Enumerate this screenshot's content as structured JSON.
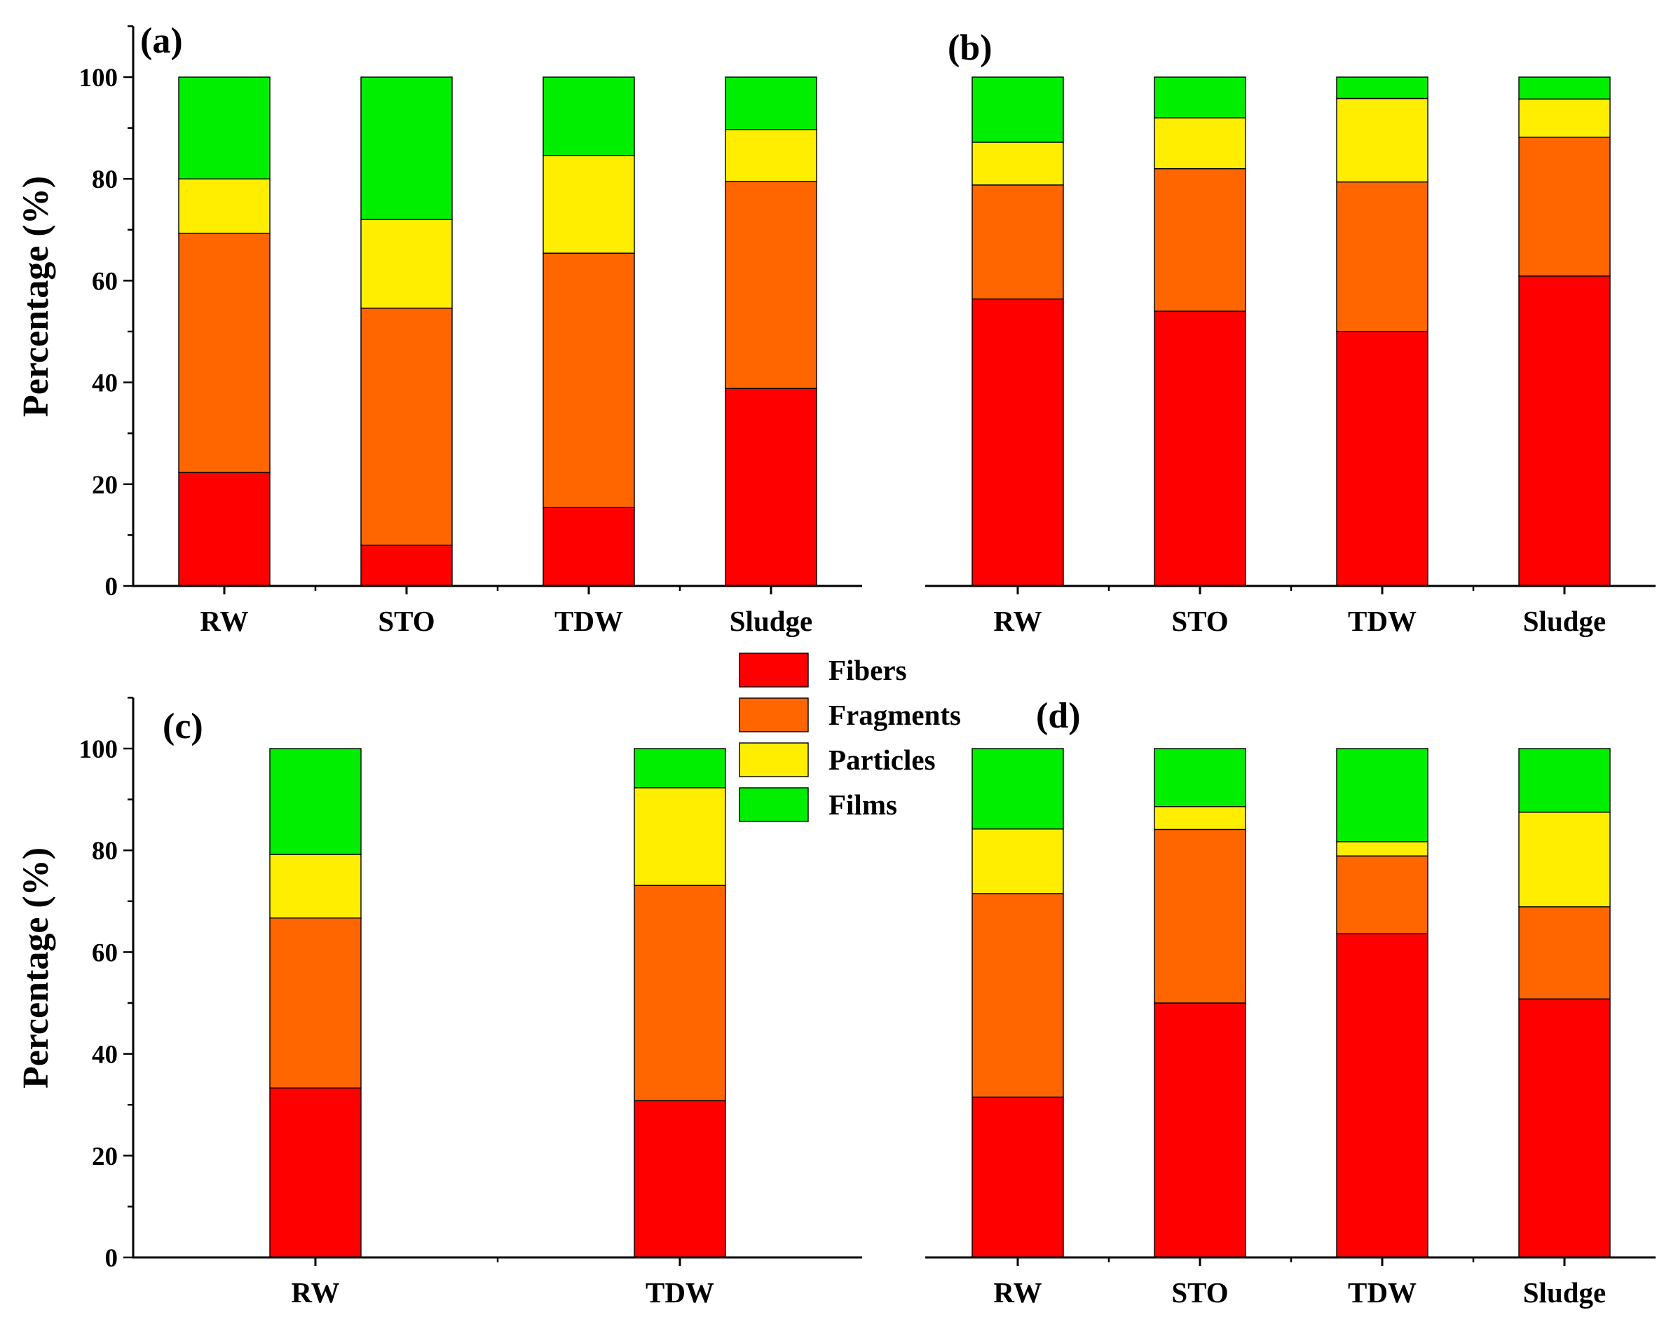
{
  "chart_data": [
    {
      "type": "bar",
      "stacked": true,
      "panel_label": "(a)",
      "ylabel": "Percentage (%)",
      "ylim": [
        0,
        110
      ],
      "yticks": [
        "0",
        "20",
        "40",
        "60",
        "80",
        "100"
      ],
      "categories": [
        "RW",
        "STO",
        "TDW",
        "Sludge"
      ],
      "series": [
        {
          "name": "Fibers",
          "values": [
            22.3,
            8.0,
            15.4,
            38.8
          ]
        },
        {
          "name": "Fragments",
          "values": [
            47.0,
            46.6,
            50.0,
            40.7
          ]
        },
        {
          "name": "Particles",
          "values": [
            10.7,
            17.4,
            19.2,
            10.2
          ]
        },
        {
          "name": "Films",
          "values": [
            20.0,
            28.0,
            15.4,
            10.3
          ]
        }
      ]
    },
    {
      "type": "bar",
      "stacked": true,
      "panel_label": "(b)",
      "ylim": [
        0,
        110
      ],
      "categories": [
        "RW",
        "STO",
        "TDW",
        "Sludge"
      ],
      "series": [
        {
          "name": "Fibers",
          "values": [
            56.4,
            54.0,
            50.0,
            60.9
          ]
        },
        {
          "name": "Fragments",
          "values": [
            22.4,
            28.0,
            29.4,
            27.3
          ]
        },
        {
          "name": "Particles",
          "values": [
            8.4,
            10.0,
            16.4,
            7.5
          ]
        },
        {
          "name": "Films",
          "values": [
            12.8,
            8.0,
            4.2,
            4.3
          ]
        }
      ]
    },
    {
      "type": "bar",
      "stacked": true,
      "panel_label": "(c)",
      "ylabel": "Percentage (%)",
      "ylim": [
        0,
        110
      ],
      "yticks": [
        "0",
        "20",
        "40",
        "60",
        "80",
        "100"
      ],
      "categories": [
        "RW",
        "TDW"
      ],
      "series": [
        {
          "name": "Fibers",
          "values": [
            33.3,
            30.8
          ]
        },
        {
          "name": "Fragments",
          "values": [
            33.4,
            42.3
          ]
        },
        {
          "name": "Particles",
          "values": [
            12.5,
            19.2
          ]
        },
        {
          "name": "Films",
          "values": [
            20.8,
            7.7
          ]
        }
      ]
    },
    {
      "type": "bar",
      "stacked": true,
      "panel_label": "(d)",
      "ylim": [
        0,
        110
      ],
      "categories": [
        "RW",
        "STO",
        "TDW",
        "Sludge"
      ],
      "series": [
        {
          "name": "Fibers",
          "values": [
            31.5,
            50.0,
            63.6,
            50.8
          ]
        },
        {
          "name": "Fragments",
          "values": [
            40.0,
            34.1,
            15.3,
            18.1
          ]
        },
        {
          "name": "Particles",
          "values": [
            12.7,
            4.5,
            2.8,
            18.6
          ]
        },
        {
          "name": "Films",
          "values": [
            15.8,
            11.4,
            18.3,
            12.5
          ]
        }
      ]
    }
  ],
  "legend": {
    "position": "center",
    "items": [
      {
        "name": "Fibers",
        "color": "#ff0000"
      },
      {
        "name": "Fragments",
        "color": "#ff6600"
      },
      {
        "name": "Particles",
        "color": "#ffee00"
      },
      {
        "name": "Films",
        "color": "#00ee00"
      }
    ]
  }
}
